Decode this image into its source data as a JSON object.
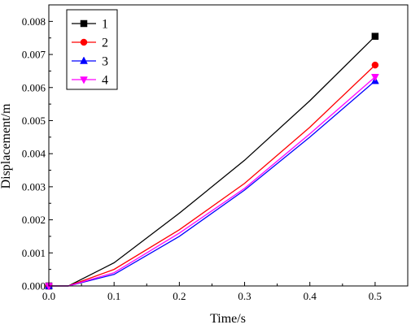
{
  "chart_data": {
    "type": "line",
    "title": "",
    "xlabel": "Time/s",
    "ylabel": "Displacement/m",
    "xlim": [
      0.0,
      0.55
    ],
    "ylim": [
      0.0,
      0.0085
    ],
    "xticks": [
      "0.0",
      "0.1",
      "0.2",
      "0.3",
      "0.4",
      "0.5"
    ],
    "yticks": [
      "0.000",
      "0.001",
      "0.002",
      "0.003",
      "0.004",
      "0.005",
      "0.006",
      "0.007",
      "0.008"
    ],
    "grid": false,
    "legend_position": "top-left",
    "series": [
      {
        "name": "1",
        "color": "#000000",
        "marker": "square",
        "x": [
          0.0,
          0.03,
          0.1,
          0.2,
          0.3,
          0.4,
          0.5
        ],
        "y": [
          0.0,
          0.0,
          0.0007,
          0.0022,
          0.0038,
          0.0056,
          0.00755
        ]
      },
      {
        "name": "2",
        "color": "#ff0000",
        "marker": "circle",
        "x": [
          0.0,
          0.03,
          0.1,
          0.2,
          0.3,
          0.4,
          0.5
        ],
        "y": [
          0.0,
          0.0,
          0.0005,
          0.0017,
          0.0031,
          0.0048,
          0.00668
        ]
      },
      {
        "name": "3",
        "color": "#0000ff",
        "marker": "triangle-up",
        "x": [
          0.0,
          0.03,
          0.1,
          0.2,
          0.3,
          0.4,
          0.5
        ],
        "y": [
          0.0,
          0.0,
          0.00035,
          0.0015,
          0.0029,
          0.0045,
          0.0062
        ]
      },
      {
        "name": "4",
        "color": "#ff00ff",
        "marker": "triangle-down",
        "x": [
          0.0,
          0.03,
          0.1,
          0.2,
          0.3,
          0.4,
          0.5
        ],
        "y": [
          0.0,
          0.0,
          0.0004,
          0.0016,
          0.00295,
          0.0046,
          0.00632
        ]
      }
    ]
  }
}
